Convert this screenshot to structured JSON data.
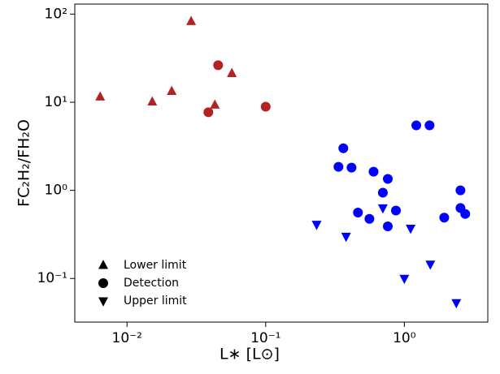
{
  "chart_data": {
    "type": "scatter",
    "xlabel": "L∗ [L⊙]",
    "ylabel": "FC₂H₂/FH₂O",
    "xscale": "log",
    "yscale": "log",
    "xlim": [
      0.0042,
      4.0
    ],
    "ylim": [
      0.032,
      130
    ],
    "xticks": [
      {
        "value": 0.01,
        "label": "10⁻²"
      },
      {
        "value": 0.1,
        "label": "10⁻¹"
      },
      {
        "value": 1,
        "label": "10⁰"
      }
    ],
    "yticks": [
      {
        "value": 0.1,
        "label": "10⁻¹"
      },
      {
        "value": 1,
        "label": "10⁰"
      },
      {
        "value": 10,
        "label": "10¹"
      },
      {
        "value": 100,
        "label": "10²"
      }
    ],
    "legend": "lower left",
    "series": [
      {
        "name": "Lower limit",
        "marker": "triangle-up",
        "x": [
          0.0064,
          0.0152,
          0.021,
          0.029,
          0.043,
          0.057
        ],
        "values": [
          11.5,
          10.1,
          13.3,
          82.6,
          9.3,
          21.2
        ],
        "colors": [
          "#b22222",
          "#b22222",
          "#b22222",
          "#b22222",
          "#b22222",
          "#b22222"
        ]
      },
      {
        "name": "Detection",
        "marker": "circle",
        "x": [
          0.0386,
          0.0454,
          0.1,
          0.335,
          0.363,
          0.416,
          0.463,
          0.56,
          0.6,
          0.7,
          0.76,
          0.76,
          0.87,
          1.22,
          1.52,
          1.94,
          2.54,
          2.54,
          2.75
        ],
        "values": [
          7.7,
          26.3,
          8.9,
          1.85,
          3.0,
          1.81,
          0.56,
          0.475,
          1.63,
          0.94,
          1.35,
          0.39,
          0.59,
          5.46,
          5.46,
          0.49,
          1.0,
          0.63,
          0.54
        ],
        "colors": [
          "#b22222",
          "#b22222",
          "#b22222",
          "#0000ff",
          "#0000ff",
          "#0000ff",
          "#0000ff",
          "#0000ff",
          "#0000ff",
          "#0000ff",
          "#0000ff",
          "#0000ff",
          "#0000ff",
          "#0000ff",
          "#0000ff",
          "#0000ff",
          "#0000ff",
          "#0000ff",
          "#0000ff"
        ]
      },
      {
        "name": "Upper limit",
        "marker": "triangle-down",
        "x": [
          0.233,
          0.38,
          0.7,
          1.11,
          1.0,
          1.54,
          2.37
        ],
        "values": [
          0.41,
          0.3,
          0.63,
          0.37,
          0.1,
          0.145,
          0.053
        ],
        "colors": [
          "#0000ff",
          "#0000ff",
          "#0000ff",
          "#0000ff",
          "#0000ff",
          "#0000ff",
          "#0000ff"
        ]
      }
    ]
  }
}
